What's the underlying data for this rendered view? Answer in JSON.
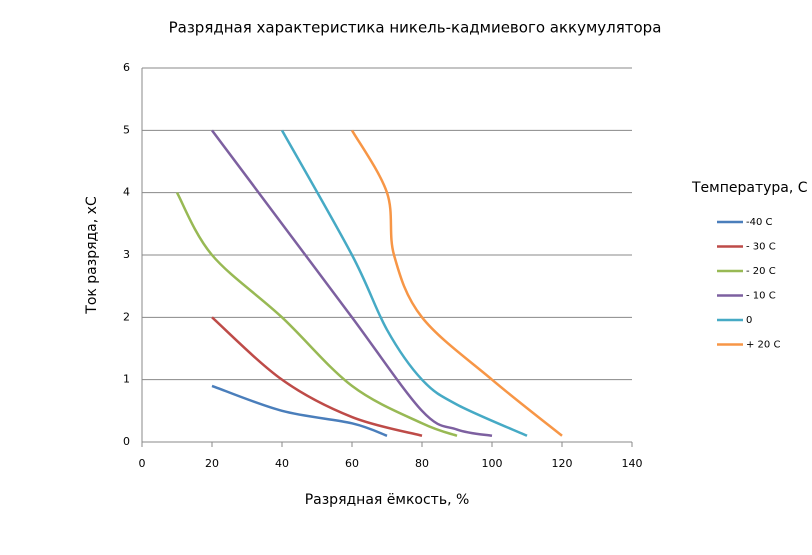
{
  "chart_data": {
    "type": "line",
    "title": "Разрядная характеристика никель-кадмиевого аккумулятора",
    "x_label": "Разрядная ёмкость, %",
    "y_label": "Ток разряда, хС",
    "legend_title": "Температура, С",
    "xlim": [
      0,
      140
    ],
    "xticks": [
      0,
      20,
      40,
      60,
      80,
      100,
      120,
      140
    ],
    "ylim": [
      0,
      6
    ],
    "yticks": [
      0,
      1,
      2,
      3,
      4,
      5,
      6
    ],
    "grid": true,
    "series": [
      {
        "name": "-40 С",
        "color": "#4a7ebb",
        "x": [
          20,
          40,
          60,
          70
        ],
        "values": [
          0.9,
          0.5,
          0.3,
          0.1
        ]
      },
      {
        "name": "- 30 С",
        "color": "#be4b48",
        "x": [
          20,
          40,
          60,
          80
        ],
        "values": [
          2,
          1,
          0.4,
          0.1
        ]
      },
      {
        "name": "- 20 С",
        "color": "#98b954",
        "x": [
          10,
          20,
          40,
          60,
          80,
          90
        ],
        "values": [
          4,
          3,
          2,
          0.9,
          0.3,
          0.1
        ]
      },
      {
        "name": "- 10 С",
        "color": "#7d60a0",
        "x": [
          20,
          40,
          60,
          80,
          90,
          100
        ],
        "values": [
          5,
          3.5,
          2,
          0.5,
          0.2,
          0.1
        ]
      },
      {
        "name": "0",
        "color": "#46aac5",
        "x": [
          40,
          60,
          70,
          80,
          90,
          110
        ],
        "values": [
          5,
          3,
          1.8,
          1,
          0.6,
          0.1
        ]
      },
      {
        "name": "+ 20 С",
        "color": "#f79646",
        "x": [
          60,
          70,
          72,
          80,
          100,
          120
        ],
        "values": [
          5,
          4,
          3,
          2,
          1,
          0.1
        ]
      }
    ]
  }
}
